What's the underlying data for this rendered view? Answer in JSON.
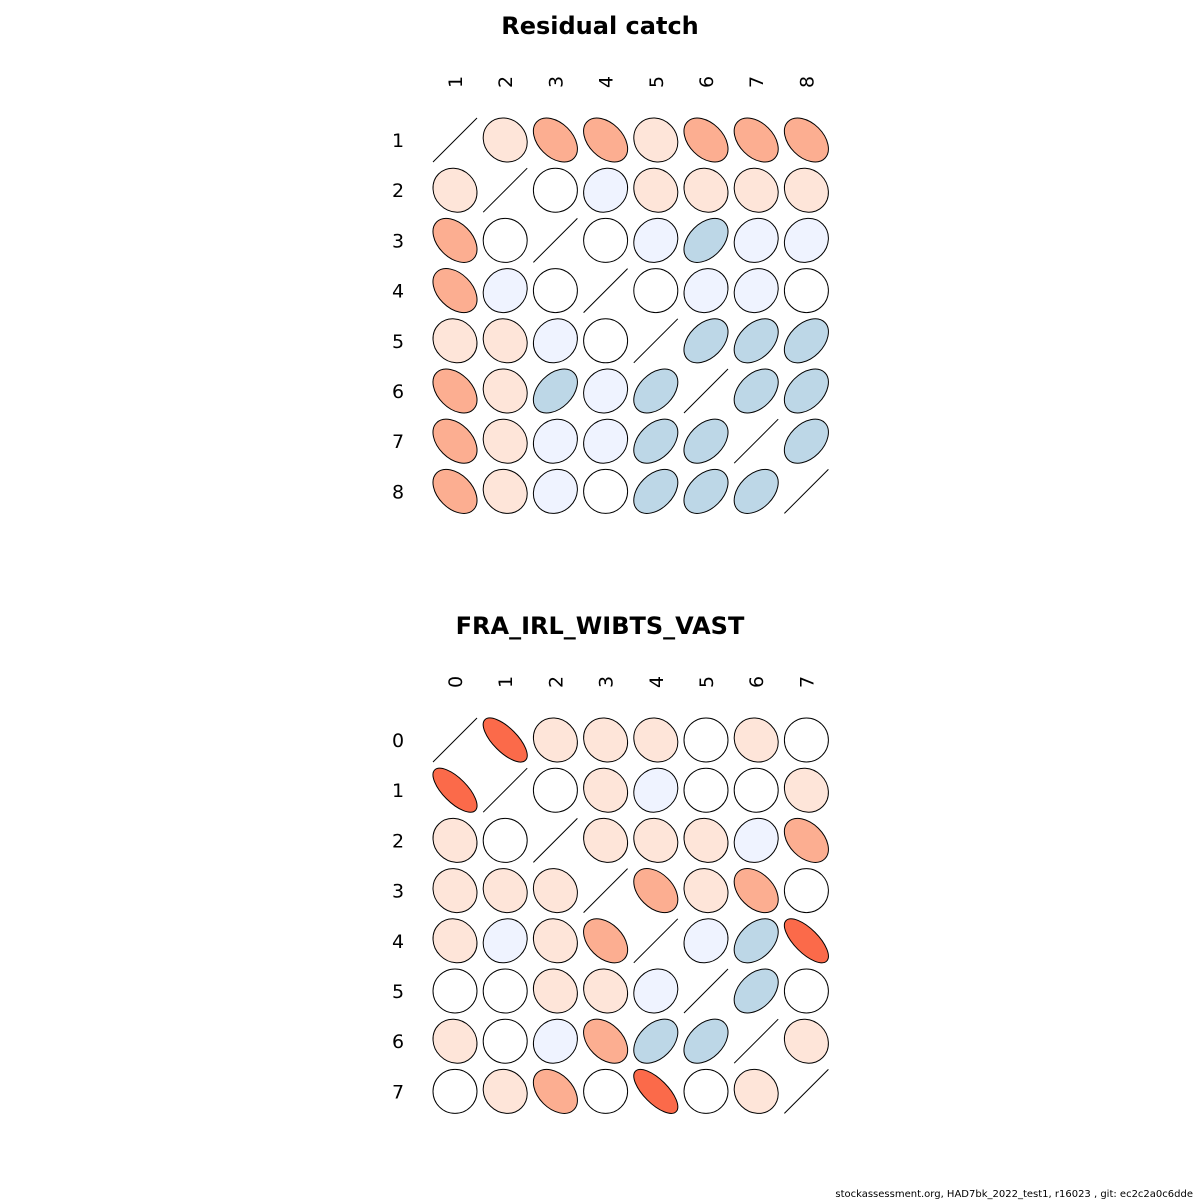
{
  "footer": "stockassessment.org, HAD7bk_2022_test1, r16023 , git: ec2c2a0c6dde",
  "colors": {
    "strong_pos": "#fb6a4a",
    "pos": "#fcae91",
    "weak_pos": "#fee5d9",
    "zero": "#ffffff",
    "weak_neg": "#eff3ff",
    "neg": "#bdd7e7"
  },
  "chart_data": [
    {
      "type": "heatmap",
      "subtype": "ellipse-correlation-matrix",
      "title": "Residual catch",
      "labels": [
        "1",
        "2",
        "3",
        "4",
        "5",
        "6",
        "7",
        "8"
      ],
      "matrix": [
        [
          1.0,
          0.1,
          0.4,
          0.4,
          0.1,
          0.4,
          0.4,
          0.4
        ],
        [
          0.1,
          1.0,
          0.0,
          -0.1,
          0.1,
          0.1,
          0.1,
          0.1
        ],
        [
          0.4,
          0.0,
          1.0,
          0.0,
          -0.1,
          -0.4,
          -0.1,
          -0.1
        ],
        [
          0.4,
          -0.1,
          0.0,
          1.0,
          0.0,
          -0.1,
          -0.1,
          0.0
        ],
        [
          0.1,
          0.1,
          -0.1,
          0.0,
          1.0,
          -0.4,
          -0.4,
          -0.4
        ],
        [
          0.4,
          0.1,
          -0.4,
          -0.1,
          -0.4,
          1.0,
          -0.4,
          -0.4
        ],
        [
          0.4,
          0.1,
          -0.1,
          -0.1,
          -0.4,
          -0.4,
          1.0,
          -0.4
        ],
        [
          0.4,
          0.1,
          -0.1,
          0.0,
          -0.4,
          -0.4,
          -0.4,
          1.0
        ]
      ]
    },
    {
      "type": "heatmap",
      "subtype": "ellipse-correlation-matrix",
      "title": "FRA_IRL_WIBTS_VAST",
      "labels": [
        "0",
        "1",
        "2",
        "3",
        "4",
        "5",
        "6",
        "7"
      ],
      "matrix": [
        [
          1.0,
          0.7,
          0.1,
          0.1,
          0.1,
          0.0,
          0.1,
          0.0
        ],
        [
          0.7,
          1.0,
          0.0,
          0.1,
          -0.1,
          0.0,
          0.0,
          0.1
        ],
        [
          0.1,
          0.0,
          1.0,
          0.1,
          0.1,
          0.1,
          -0.1,
          0.4
        ],
        [
          0.1,
          0.1,
          0.1,
          1.0,
          0.4,
          0.1,
          0.4,
          0.0
        ],
        [
          0.1,
          -0.1,
          0.1,
          0.4,
          1.0,
          -0.1,
          -0.4,
          0.7
        ],
        [
          0.0,
          0.0,
          0.1,
          0.1,
          -0.1,
          1.0,
          -0.4,
          0.0
        ],
        [
          0.1,
          0.0,
          -0.1,
          0.4,
          -0.4,
          -0.4,
          1.0,
          0.1
        ],
        [
          0.0,
          0.1,
          0.4,
          0.0,
          0.7,
          0.0,
          0.1,
          1.0
        ]
      ]
    }
  ]
}
